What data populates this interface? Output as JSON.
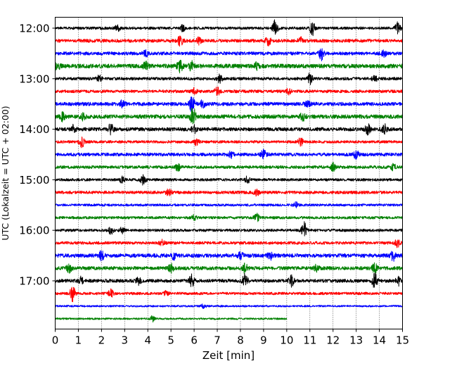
{
  "chart_data": {
    "type": "line",
    "title": "",
    "xlabel": "Zeit  [min]",
    "ylabel": "UTC (Lokalzeit = UTC + 02:00)",
    "xlim": [
      0,
      15
    ],
    "x_ticks": [
      "0",
      "1",
      "2",
      "3",
      "4",
      "5",
      "6",
      "7",
      "8",
      "9",
      "10",
      "11",
      "12",
      "13",
      "14",
      "15"
    ],
    "y_ticks": [
      "12:00",
      "13:00",
      "14:00",
      "15:00",
      "16:00",
      "17:00"
    ],
    "row_minutes": 15,
    "grid": "vertical dotted at each minute",
    "legend": "none",
    "colors_cycle": [
      "#000000",
      "#ff0000",
      "#0000ff",
      "#008000"
    ],
    "series": [
      {
        "start": "12:00",
        "end_min": 15,
        "color": "#000000",
        "noise": 0.45,
        "events": [
          {
            "t": 9.5,
            "a": 2.6
          },
          {
            "t": 11.1,
            "a": 2.4
          },
          {
            "t": 14.8,
            "a": 2.0
          },
          {
            "t": 2.7,
            "a": 1.0
          },
          {
            "t": 5.5,
            "a": 0.9
          }
        ]
      },
      {
        "start": "12:15",
        "end_min": 15,
        "color": "#ff0000",
        "noise": 0.55,
        "events": [
          {
            "t": 5.4,
            "a": 1.6
          },
          {
            "t": 9.2,
            "a": 1.5
          },
          {
            "t": 6.2,
            "a": 1.0
          },
          {
            "t": 10.6,
            "a": 1.0
          }
        ]
      },
      {
        "start": "12:30",
        "end_min": 15,
        "color": "#0000ff",
        "noise": 0.55,
        "events": [
          {
            "t": 11.5,
            "a": 2.2
          },
          {
            "t": 3.9,
            "a": 1.0
          },
          {
            "t": 14.2,
            "a": 0.9
          }
        ]
      },
      {
        "start": "12:45",
        "end_min": 15,
        "color": "#008000",
        "noise": 0.7,
        "events": [
          {
            "t": 5.4,
            "a": 2.0
          },
          {
            "t": 5.9,
            "a": 1.6
          },
          {
            "t": 0.1,
            "a": 1.1
          },
          {
            "t": 3.9,
            "a": 1.2
          },
          {
            "t": 8.7,
            "a": 1.0
          }
        ]
      },
      {
        "start": "13:00",
        "end_min": 15,
        "color": "#000000",
        "noise": 0.5,
        "events": [
          {
            "t": 11.0,
            "a": 1.8
          },
          {
            "t": 7.1,
            "a": 1.2
          },
          {
            "t": 1.9,
            "a": 0.9
          },
          {
            "t": 13.8,
            "a": 1.0
          }
        ]
      },
      {
        "start": "13:15",
        "end_min": 15,
        "color": "#ff0000",
        "noise": 0.5,
        "events": [
          {
            "t": 7.0,
            "a": 1.4
          },
          {
            "t": 6.0,
            "a": 1.0
          },
          {
            "t": 10.1,
            "a": 0.9
          }
        ]
      },
      {
        "start": "13:30",
        "end_min": 15,
        "color": "#0000ff",
        "noise": 0.6,
        "events": [
          {
            "t": 5.9,
            "a": 2.6
          },
          {
            "t": 6.4,
            "a": 1.5
          },
          {
            "t": 2.9,
            "a": 1.0
          },
          {
            "t": 10.9,
            "a": 0.8
          }
        ]
      },
      {
        "start": "13:45",
        "end_min": 15,
        "color": "#008000",
        "noise": 0.65,
        "events": [
          {
            "t": 5.95,
            "a": 3.2
          },
          {
            "t": 0.3,
            "a": 1.3
          },
          {
            "t": 1.2,
            "a": 1.1
          },
          {
            "t": 10.7,
            "a": 1.2
          }
        ]
      },
      {
        "start": "14:00",
        "end_min": 15,
        "color": "#000000",
        "noise": 0.6,
        "events": [
          {
            "t": 2.4,
            "a": 1.6
          },
          {
            "t": 0.8,
            "a": 1.3
          },
          {
            "t": 13.5,
            "a": 1.5
          },
          {
            "t": 14.2,
            "a": 1.7
          },
          {
            "t": 6.0,
            "a": 1.1
          }
        ]
      },
      {
        "start": "14:15",
        "end_min": 15,
        "color": "#ff0000",
        "noise": 0.45,
        "events": [
          {
            "t": 1.15,
            "a": 1.8
          },
          {
            "t": 10.6,
            "a": 1.3
          },
          {
            "t": 6.1,
            "a": 1.0
          }
        ]
      },
      {
        "start": "14:30",
        "end_min": 15,
        "color": "#0000ff",
        "noise": 0.55,
        "events": [
          {
            "t": 9.0,
            "a": 1.5
          },
          {
            "t": 13.0,
            "a": 1.2
          },
          {
            "t": 7.6,
            "a": 1.0
          }
        ]
      },
      {
        "start": "14:45",
        "end_min": 15,
        "color": "#008000",
        "noise": 0.5,
        "events": [
          {
            "t": 5.3,
            "a": 1.1
          },
          {
            "t": 12.0,
            "a": 1.2
          },
          {
            "t": 14.6,
            "a": 1.0
          }
        ]
      },
      {
        "start": "15:00",
        "end_min": 15,
        "color": "#000000",
        "noise": 0.45,
        "events": [
          {
            "t": 3.8,
            "a": 1.6
          },
          {
            "t": 2.9,
            "a": 1.0
          },
          {
            "t": 8.3,
            "a": 1.0
          }
        ]
      },
      {
        "start": "15:15",
        "end_min": 15,
        "color": "#ff0000",
        "noise": 0.5,
        "events": [
          {
            "t": 4.9,
            "a": 1.2
          },
          {
            "t": 8.7,
            "a": 1.0
          }
        ]
      },
      {
        "start": "15:30",
        "end_min": 15,
        "color": "#0000ff",
        "noise": 0.4,
        "events": [
          {
            "t": 10.4,
            "a": 0.9
          }
        ]
      },
      {
        "start": "15:45",
        "end_min": 15,
        "color": "#008000",
        "noise": 0.45,
        "events": [
          {
            "t": 8.7,
            "a": 1.3
          },
          {
            "t": 6.0,
            "a": 0.9
          }
        ]
      },
      {
        "start": "16:00",
        "end_min": 15,
        "color": "#000000",
        "noise": 0.45,
        "events": [
          {
            "t": 10.75,
            "a": 2.6
          },
          {
            "t": 2.4,
            "a": 1.2
          },
          {
            "t": 2.9,
            "a": 1.0
          }
        ]
      },
      {
        "start": "16:15",
        "end_min": 15,
        "color": "#ff0000",
        "noise": 0.5,
        "events": [
          {
            "t": 14.8,
            "a": 1.4
          },
          {
            "t": 4.6,
            "a": 1.0
          }
        ]
      },
      {
        "start": "16:30",
        "end_min": 15,
        "color": "#0000ff",
        "noise": 0.65,
        "events": [
          {
            "t": 2.0,
            "a": 1.4
          },
          {
            "t": 5.1,
            "a": 1.2
          },
          {
            "t": 9.3,
            "a": 1.1
          },
          {
            "t": 14.6,
            "a": 1.4
          },
          {
            "t": 8.0,
            "a": 1.0
          }
        ]
      },
      {
        "start": "16:45",
        "end_min": 15,
        "color": "#008000",
        "noise": 0.6,
        "events": [
          {
            "t": 0.6,
            "a": 1.2
          },
          {
            "t": 5.0,
            "a": 1.2
          },
          {
            "t": 8.2,
            "a": 1.3
          },
          {
            "t": 11.3,
            "a": 1.0
          },
          {
            "t": 13.8,
            "a": 1.5
          }
        ]
      },
      {
        "start": "17:00",
        "end_min": 15,
        "color": "#000000",
        "noise": 0.55,
        "events": [
          {
            "t": 5.9,
            "a": 2.0
          },
          {
            "t": 8.2,
            "a": 2.1
          },
          {
            "t": 10.2,
            "a": 1.7
          },
          {
            "t": 13.8,
            "a": 2.4
          },
          {
            "t": 14.8,
            "a": 1.5
          },
          {
            "t": 1.1,
            "a": 1.2
          },
          {
            "t": 3.6,
            "a": 1.1
          }
        ]
      },
      {
        "start": "17:15",
        "end_min": 15,
        "color": "#ff0000",
        "noise": 0.45,
        "events": [
          {
            "t": 0.75,
            "a": 2.4
          },
          {
            "t": 2.4,
            "a": 1.2
          },
          {
            "t": 4.8,
            "a": 0.9
          }
        ]
      },
      {
        "start": "17:30",
        "end_min": 15,
        "color": "#0000ff",
        "noise": 0.3,
        "events": [
          {
            "t": 6.4,
            "a": 0.8
          }
        ]
      },
      {
        "start": "17:45",
        "end_min": 10,
        "color": "#008000",
        "noise": 0.3,
        "events": [
          {
            "t": 4.2,
            "a": 0.9
          }
        ]
      }
    ]
  }
}
